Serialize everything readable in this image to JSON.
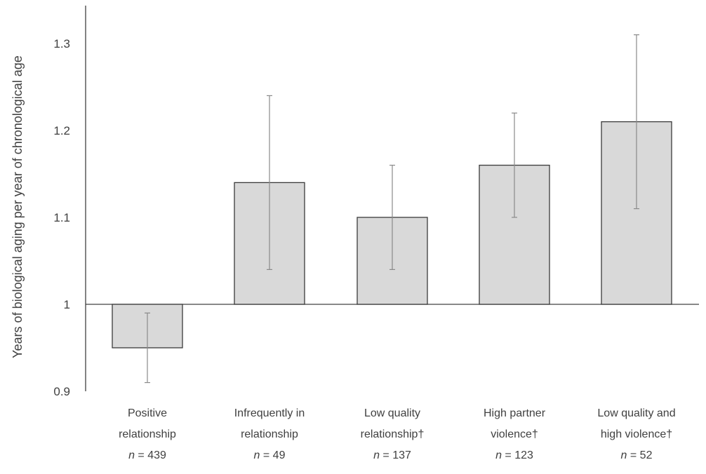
{
  "chart_data": {
    "type": "bar",
    "title": "",
    "ylabel": "Years of biological aging per year of chronological age",
    "xlabel": "",
    "baseline": 1,
    "ylim": [
      0.9,
      1.35
    ],
    "yticks": [
      "0.9",
      "1",
      "1.1",
      "1.2",
      "1.3"
    ],
    "ytick_values": [
      0.9,
      1.0,
      1.1,
      1.2,
      1.3
    ],
    "categories": [
      {
        "lines": [
          "Positive",
          "relationship"
        ],
        "n_prefix": "n",
        "n_value": "= 439"
      },
      {
        "lines": [
          "Infrequently in",
          "relationship"
        ],
        "n_prefix": "n",
        "n_value": "= 49"
      },
      {
        "lines": [
          "Low quality",
          "relationship†"
        ],
        "n_prefix": "n",
        "n_value": "= 137"
      },
      {
        "lines": [
          "High partner",
          "violence†"
        ],
        "n_prefix": "n",
        "n_value": "= 123"
      },
      {
        "lines": [
          "Low quality and",
          "high violence†"
        ],
        "n_prefix": "n",
        "n_value": "= 52"
      }
    ],
    "values": [
      0.95,
      1.14,
      1.1,
      1.16,
      1.21
    ],
    "error_low": [
      0.91,
      1.04,
      1.04,
      1.1,
      1.11
    ],
    "error_high": [
      0.99,
      1.24,
      1.16,
      1.22,
      1.31
    ],
    "colors": {
      "bar_fill": "#d9d9d9",
      "bar_stroke": "#3a3a3a",
      "error_bar": "#8a8a8a",
      "axis": "#404040"
    }
  }
}
